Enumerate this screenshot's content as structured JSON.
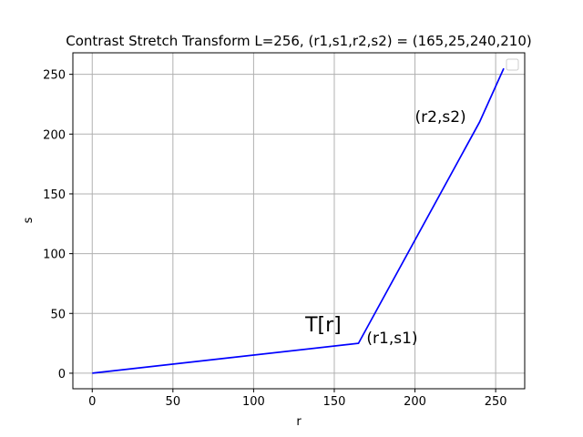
{
  "chart_data": {
    "type": "line",
    "title": "Contrast Stretch Transform L=256, (r1,s1,r2,s2) = (165,25,240,210)",
    "xlabel": "r",
    "ylabel": "s",
    "xlim": [
      -12,
      268
    ],
    "ylim": [
      -13,
      268
    ],
    "xticks": [
      0,
      50,
      100,
      150,
      200,
      250
    ],
    "yticks": [
      0,
      50,
      100,
      150,
      200,
      250
    ],
    "grid": true,
    "legend": "upper right (empty)",
    "series": [
      {
        "color": "#0000ff",
        "x": [
          0,
          165,
          240,
          255
        ],
        "y": [
          0,
          25,
          210,
          255
        ]
      }
    ],
    "annotations": [
      {
        "text": "T[r]",
        "x": 132,
        "y": 35,
        "size": "large"
      },
      {
        "text": "(r1,s1)",
        "x": 170,
        "y": 25,
        "size": "medium"
      },
      {
        "text": "(r2,s2)",
        "x": 200,
        "y": 210,
        "size": "medium"
      }
    ]
  }
}
